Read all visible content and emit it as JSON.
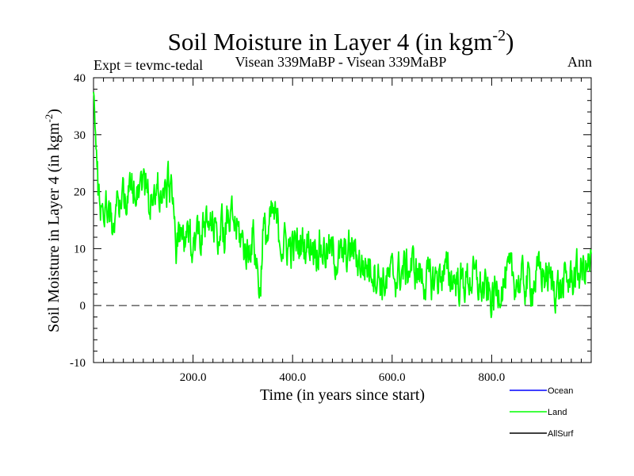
{
  "chart_data": {
    "type": "line",
    "title": "Soil Moisture in Layer 4 (in kgm",
    "title_sup": "-2",
    "title_close": ")",
    "subtitle_left": "Expt = tevmc-tedal",
    "subtitle_center": "Visean 339MaBP - Visean 339MaBP",
    "subtitle_right": "Ann",
    "xlabel": "Time (in years since start)",
    "ylabel": "Soil Moisture in Layer 4 (in kgm",
    "ylabel_sup": "-2",
    "ylabel_close": ")",
    "xlim": [
      0,
      1000
    ],
    "ylim": [
      -10,
      40
    ],
    "x_ticks": [
      200,
      400,
      600,
      800
    ],
    "x_tick_labels": [
      "200.0",
      "400.0",
      "600.0",
      "800.0"
    ],
    "y_ticks": [
      -10,
      0,
      10,
      20,
      30,
      40
    ],
    "y_tick_labels": [
      "-10",
      "0",
      "10",
      "20",
      "30",
      "40"
    ],
    "reference_line": 0,
    "legend": [
      {
        "name": "Ocean",
        "color": "#0000ff"
      },
      {
        "name": "Land",
        "color": "#00ff00"
      },
      {
        "name": "AllSurf",
        "color": "#000000"
      }
    ],
    "series": [
      {
        "name": "Land",
        "color": "#00ff00",
        "x": [
          0,
          5,
          10,
          20,
          30,
          40,
          50,
          60,
          70,
          80,
          90,
          100,
          110,
          120,
          130,
          140,
          150,
          160,
          165,
          170,
          180,
          190,
          200,
          220,
          240,
          260,
          280,
          300,
          310,
          320,
          330,
          335,
          340,
          350,
          360,
          380,
          400,
          420,
          440,
          460,
          480,
          500,
          520,
          540,
          560,
          580,
          600,
          620,
          640,
          660,
          680,
          700,
          720,
          740,
          760,
          780,
          800,
          820,
          840,
          860,
          880,
          900,
          920,
          940,
          960,
          980,
          1000
        ],
        "y": [
          39,
          28,
          19,
          17,
          18,
          14,
          18,
          20,
          19,
          21,
          22,
          22,
          19,
          18,
          21,
          19,
          21,
          21,
          8,
          11,
          12,
          11,
          12,
          13,
          14,
          13,
          15,
          11,
          9,
          13,
          6,
          2,
          13,
          12,
          16,
          11,
          10,
          11,
          11,
          10,
          9,
          8,
          10,
          7,
          7,
          4,
          5,
          6,
          7,
          5,
          4,
          6,
          5,
          4,
          5,
          3,
          1,
          4,
          5,
          4,
          4,
          6,
          4,
          3,
          5,
          6,
          7
        ]
      }
    ]
  }
}
